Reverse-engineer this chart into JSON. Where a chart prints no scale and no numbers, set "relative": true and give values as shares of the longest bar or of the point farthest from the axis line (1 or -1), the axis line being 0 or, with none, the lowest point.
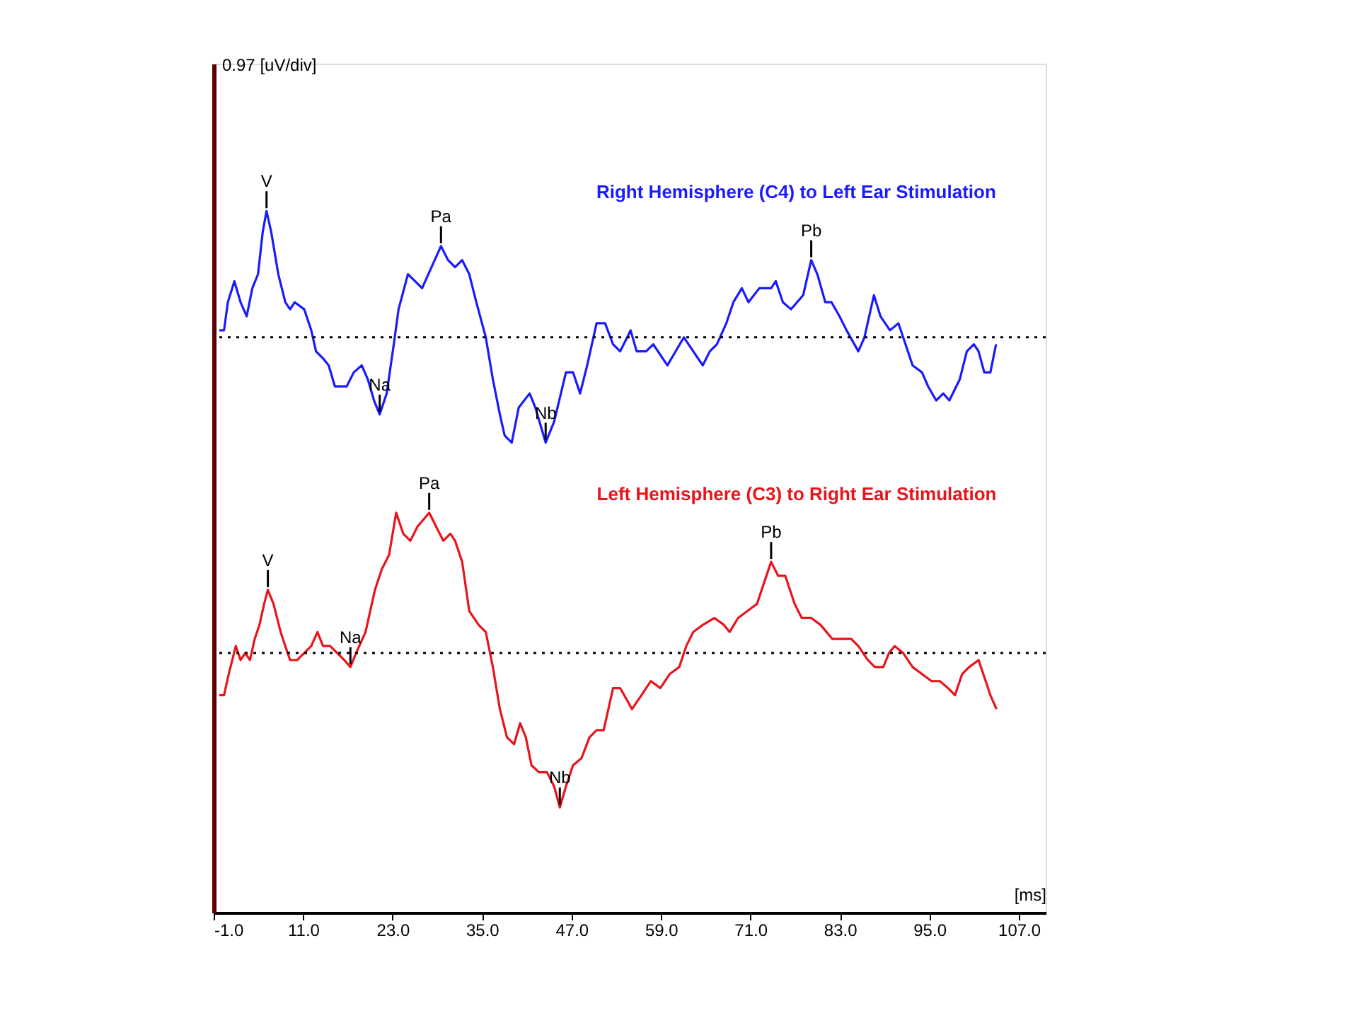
{
  "chart_data": {
    "type": "line",
    "relative": true,
    "xlabel": "[ms]",
    "xlim": [
      -1,
      110.6
    ],
    "xticks": [
      {
        "value": -1,
        "label": "-1.0"
      },
      {
        "value": 11,
        "label": "11.0"
      },
      {
        "value": 23,
        "label": "23.0"
      },
      {
        "value": 35,
        "label": "35.0"
      },
      {
        "value": 47,
        "label": "47.0"
      },
      {
        "value": 59,
        "label": "59.0"
      },
      {
        "value": 71,
        "label": "71.0"
      },
      {
        "value": 83,
        "label": "83.0"
      },
      {
        "value": 95,
        "label": "95.0"
      },
      {
        "value": 107,
        "label": "107.0"
      }
    ],
    "tick_labels": "x",
    "line_style": "solid",
    "marker": "none",
    "series": [
      {
        "name": "Right Hemisphere (C4) to Left Ear Stimulation",
        "color": "#1a1aff",
        "x": [
          -0.24,
          0.39,
          0.9,
          1.78,
          2.61,
          3.43,
          4.19,
          4.95,
          5.58,
          6.09,
          6.72,
          7.67,
          8.61,
          9.25,
          9.88,
          11.14,
          12.09,
          12.73,
          13.67,
          14.43,
          15.26,
          16.21,
          16.84,
          17.79,
          18.86,
          19.68,
          20.51,
          21.27,
          22.21,
          23.16,
          23.8,
          25.06,
          26.01,
          26.96,
          28.22,
          29.49,
          30.44,
          31.38,
          32.33,
          33.28,
          34.23,
          35.5,
          36.45,
          37.39,
          38.03,
          38.98,
          39.92,
          41.38,
          42.14,
          43.53,
          44.67,
          46.25,
          47.2,
          48.15,
          49.1,
          50.36,
          51.5,
          52.57,
          53.52,
          54.47,
          54.92,
          55.74,
          57.01,
          57.96,
          59.86,
          62.07,
          63.33,
          64.6,
          65.55,
          66.5,
          67.76,
          68.71,
          69.85,
          70.73,
          72.19,
          73.77,
          74.4,
          75.35,
          76.43,
          77.25,
          78.07,
          79.15,
          79.97,
          81.04,
          81.87,
          82.94,
          83.89,
          85.47,
          86.29,
          87.56,
          88.44,
          89.71,
          90.85,
          91.8,
          92.75,
          94.01,
          94.83,
          95.91,
          96.86,
          97.68,
          99.07,
          100.02,
          100.97,
          101.6,
          102.36,
          103.18,
          103.94
        ],
        "values": [
          0.83,
          0.83,
          0.87,
          0.9,
          0.87,
          0.85,
          0.89,
          0.91,
          0.97,
          1.0,
          0.97,
          0.91,
          0.87,
          0.86,
          0.87,
          0.86,
          0.83,
          0.8,
          0.79,
          0.78,
          0.75,
          0.75,
          0.75,
          0.77,
          0.78,
          0.76,
          0.73,
          0.71,
          0.74,
          0.81,
          0.86,
          0.91,
          0.9,
          0.89,
          0.92,
          0.95,
          0.93,
          0.92,
          0.93,
          0.91,
          0.87,
          0.82,
          0.76,
          0.71,
          0.68,
          0.67,
          0.72,
          0.74,
          0.72,
          0.67,
          0.7,
          0.77,
          0.77,
          0.74,
          0.78,
          0.84,
          0.84,
          0.81,
          0.8,
          0.82,
          0.83,
          0.8,
          0.8,
          0.81,
          0.78,
          0.82,
          0.8,
          0.78,
          0.8,
          0.81,
          0.84,
          0.87,
          0.89,
          0.87,
          0.89,
          0.89,
          0.9,
          0.87,
          0.86,
          0.87,
          0.88,
          0.93,
          0.91,
          0.87,
          0.87,
          0.85,
          0.83,
          0.8,
          0.82,
          0.88,
          0.85,
          0.83,
          0.84,
          0.81,
          0.78,
          0.77,
          0.75,
          0.73,
          0.74,
          0.73,
          0.76,
          0.8,
          0.81,
          0.8,
          0.77,
          0.77,
          0.81
        ]
      },
      {
        "name": "Left Hemisphere (C3) to Right Ear Stimulation",
        "color": "#e8141b",
        "x": [
          -0.24,
          0.39,
          1.02,
          1.97,
          2.61,
          3.24,
          3.87,
          4.5,
          5.14,
          5.77,
          6.27,
          7.03,
          7.98,
          8.61,
          9.25,
          10.2,
          11.14,
          12.09,
          12.92,
          13.67,
          14.62,
          15.57,
          16.52,
          17.34,
          18.1,
          19.37,
          20.63,
          21.58,
          22.53,
          23.48,
          24.43,
          25.38,
          26.33,
          27.91,
          28.85,
          29.8,
          30.75,
          31.38,
          32.33,
          33.28,
          34.55,
          35.5,
          36.45,
          37.39,
          38.34,
          39.29,
          40.11,
          40.87,
          41.63,
          42.64,
          43.72,
          44.67,
          45.43,
          46.25,
          47.2,
          48.33,
          49.41,
          50.36,
          51.31,
          52.57,
          53.52,
          54.6,
          55.11,
          56.38,
          57.64,
          58.91,
          60.17,
          61.44,
          62.39,
          63.33,
          64.6,
          66.18,
          67.45,
          68.2,
          69.34,
          70.61,
          71.87,
          72.82,
          73.77,
          74.72,
          75.67,
          76.93,
          77.88,
          79.15,
          80.41,
          81.99,
          83.26,
          84.52,
          85.47,
          86.74,
          87.69,
          88.82,
          89.58,
          90.34,
          91.48,
          92.75,
          94.01,
          95.28,
          96.41,
          97.49,
          98.44,
          99.39,
          100.34,
          101.6,
          102.55,
          103.18,
          104.0
        ],
        "values": [
          0.31,
          0.31,
          0.34,
          0.38,
          0.36,
          0.37,
          0.36,
          0.39,
          0.41,
          0.44,
          0.46,
          0.44,
          0.4,
          0.38,
          0.36,
          0.36,
          0.37,
          0.38,
          0.4,
          0.38,
          0.38,
          0.37,
          0.36,
          0.35,
          0.37,
          0.4,
          0.46,
          0.49,
          0.51,
          0.57,
          0.54,
          0.53,
          0.55,
          0.57,
          0.55,
          0.53,
          0.54,
          0.53,
          0.5,
          0.43,
          0.41,
          0.4,
          0.35,
          0.29,
          0.25,
          0.24,
          0.27,
          0.25,
          0.21,
          0.2,
          0.2,
          0.18,
          0.15,
          0.18,
          0.21,
          0.22,
          0.25,
          0.26,
          0.26,
          0.32,
          0.32,
          0.3,
          0.29,
          0.31,
          0.33,
          0.32,
          0.34,
          0.35,
          0.38,
          0.4,
          0.41,
          0.42,
          0.41,
          0.4,
          0.42,
          0.43,
          0.44,
          0.47,
          0.5,
          0.48,
          0.48,
          0.44,
          0.42,
          0.42,
          0.41,
          0.39,
          0.39,
          0.39,
          0.38,
          0.36,
          0.35,
          0.35,
          0.37,
          0.38,
          0.37,
          0.35,
          0.34,
          0.33,
          0.33,
          0.32,
          0.31,
          0.34,
          0.35,
          0.36,
          0.33,
          0.31,
          0.29
        ]
      }
    ],
    "ref_lines": [
      {
        "axis": "y",
        "value": 0.82,
        "color": "#000000",
        "line_style": "dotted"
      },
      {
        "axis": "y",
        "value": 0.37,
        "color": "#000000",
        "line_style": "dotted"
      }
    ],
    "annotations": [
      "0.97 [uV/div]",
      {
        "text": "V",
        "x": 6.09,
        "y": 1.0
      },
      {
        "text": "Na",
        "x": 21.27,
        "y": 0.71
      },
      {
        "text": "Pa",
        "x": 29.49,
        "y": 0.95
      },
      {
        "text": "Nb",
        "x": 43.53,
        "y": 0.67
      },
      {
        "text": "Pb",
        "x": 79.15,
        "y": 0.93
      },
      {
        "text": "V",
        "x": 6.27,
        "y": 0.46
      },
      {
        "text": "Na",
        "x": 17.34,
        "y": 0.35
      },
      {
        "text": "Pa",
        "x": 27.91,
        "y": 0.57
      },
      {
        "text": "Nb",
        "x": 45.43,
        "y": 0.15
      },
      {
        "text": "Pb",
        "x": 73.77,
        "y": 0.5
      }
    ]
  }
}
